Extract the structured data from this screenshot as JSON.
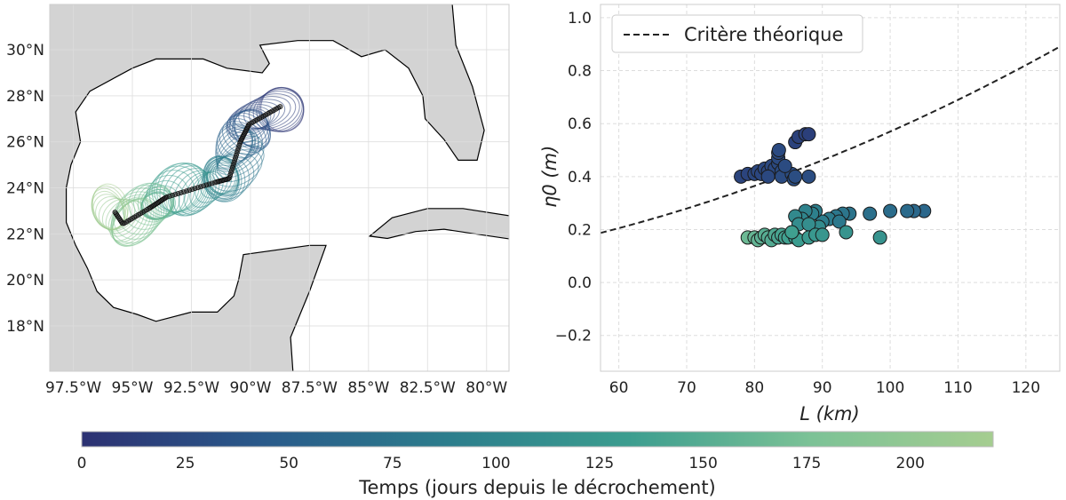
{
  "chart_data": [
    {
      "type": "map",
      "lon_ticks": [
        "97.5°W",
        "95°W",
        "92.5°W",
        "90°W",
        "87.5°W",
        "85°W",
        "82.5°W",
        "80°W"
      ],
      "lon_tick_values": [
        -97.5,
        -95,
        -92.5,
        -90,
        -87.5,
        -85,
        -82.5,
        -80
      ],
      "lat_ticks": [
        "18°N",
        "20°N",
        "22°N",
        "24°N",
        "26°N",
        "28°N",
        "30°N"
      ],
      "lat_tick_values": [
        18,
        20,
        22,
        24,
        26,
        28,
        30
      ],
      "lon_range": [
        -98.5,
        -79.05
      ],
      "lat_range": [
        16.03,
        31.97
      ],
      "track": [
        [
          -88.74,
          27.53,
          0
        ],
        [
          -90.06,
          26.76,
          30
        ],
        [
          -90.43,
          26.0,
          55
        ],
        [
          -90.9,
          24.4,
          85
        ],
        [
          -91.45,
          24.25,
          105
        ],
        [
          -93.55,
          23.6,
          140
        ],
        [
          -94.3,
          23.1,
          170
        ],
        [
          -95.4,
          22.43,
          195
        ],
        [
          -95.96,
          23.28,
          220
        ]
      ]
    },
    {
      "type": "scatter",
      "xlabel": "L (km)",
      "ylabel": "η0 (m)",
      "xlim": [
        57.3,
        125
      ],
      "ylim": [
        -0.335,
        1.05
      ],
      "x_ticks": [
        60,
        70,
        80,
        90,
        100,
        110,
        120
      ],
      "y_ticks": [
        -0.2,
        0.0,
        0.2,
        0.4,
        0.6,
        0.8,
        1.0
      ],
      "y_tick_labels": [
        "−0.2",
        "0.0",
        "0.2",
        "0.4",
        "0.6",
        "0.8",
        "1.0"
      ],
      "grid": true,
      "legend": {
        "position": "top-left",
        "entries": [
          "Critère théorique"
        ]
      },
      "curve": {
        "name": "Critère théorique",
        "coef": 5.7e-05,
        "form": "eta = coef * L^2"
      },
      "points": [
        [
          78,
          0.4,
          20
        ],
        [
          79,
          0.41,
          20
        ],
        [
          80,
          0.41,
          22
        ],
        [
          80.5,
          0.42,
          22
        ],
        [
          81,
          0.41,
          23
        ],
        [
          81.5,
          0.43,
          24
        ],
        [
          82,
          0.42,
          24
        ],
        [
          82.5,
          0.44,
          25
        ],
        [
          83,
          0.43,
          25
        ],
        [
          83.5,
          0.45,
          26
        ],
        [
          83.5,
          0.47,
          26
        ],
        [
          83.5,
          0.49,
          27
        ],
        [
          83.6,
          0.5,
          27
        ],
        [
          84,
          0.42,
          28
        ],
        [
          84,
          0.4,
          28
        ],
        [
          85.5,
          0.41,
          29
        ],
        [
          85.8,
          0.39,
          30
        ],
        [
          86,
          0.4,
          30
        ],
        [
          86,
          0.53,
          18
        ],
        [
          86.5,
          0.55,
          17
        ],
        [
          87.5,
          0.56,
          16
        ],
        [
          88,
          0.56,
          15
        ],
        [
          88,
          0.4,
          30
        ],
        [
          82,
          0.4,
          25
        ],
        [
          84.5,
          0.44,
          28
        ],
        [
          105,
          0.27,
          60
        ],
        [
          103.5,
          0.27,
          62
        ],
        [
          102.5,
          0.27,
          64
        ],
        [
          100,
          0.27,
          66
        ],
        [
          97,
          0.26,
          70
        ],
        [
          94,
          0.26,
          75
        ],
        [
          93,
          0.26,
          78
        ],
        [
          92,
          0.25,
          80
        ],
        [
          91,
          0.24,
          85
        ],
        [
          90,
          0.23,
          88
        ],
        [
          89,
          0.27,
          90
        ],
        [
          88.5,
          0.26,
          92
        ],
        [
          87.5,
          0.27,
          95
        ],
        [
          87,
          0.24,
          100
        ],
        [
          86,
          0.25,
          105
        ],
        [
          86.5,
          0.22,
          110
        ],
        [
          92.5,
          0.23,
          82
        ],
        [
          89.5,
          0.21,
          108
        ],
        [
          88,
          0.22,
          112
        ],
        [
          79,
          0.17,
          165
        ],
        [
          80,
          0.17,
          160
        ],
        [
          80.5,
          0.16,
          158
        ],
        [
          81,
          0.17,
          155
        ],
        [
          81.5,
          0.18,
          152
        ],
        [
          82,
          0.17,
          150
        ],
        [
          82.5,
          0.16,
          148
        ],
        [
          83,
          0.18,
          145
        ],
        [
          83.5,
          0.17,
          142
        ],
        [
          84,
          0.18,
          140
        ],
        [
          84.5,
          0.17,
          138
        ],
        [
          85,
          0.17,
          135
        ],
        [
          86,
          0.17,
          132
        ],
        [
          86.5,
          0.16,
          130
        ],
        [
          88,
          0.17,
          128
        ],
        [
          89,
          0.18,
          125
        ],
        [
          90,
          0.18,
          122
        ],
        [
          93.5,
          0.19,
          120
        ],
        [
          98.5,
          0.17,
          118
        ],
        [
          85.5,
          0.19,
          134
        ]
      ]
    }
  ],
  "colorbar": {
    "label": "Temps (jours depuis le décrochement)",
    "range": [
      0,
      220
    ],
    "ticks": [
      0,
      25,
      50,
      75,
      100,
      125,
      150,
      175,
      200
    ],
    "tick_labels": [
      "0",
      "25",
      "50",
      "75",
      "100",
      "125",
      "150",
      "175",
      "200"
    ],
    "colormap": [
      "#2c3172",
      "#2a5a8a",
      "#2c7d8c",
      "#3c9d8f",
      "#7cc296",
      "#a5cd90"
    ]
  }
}
